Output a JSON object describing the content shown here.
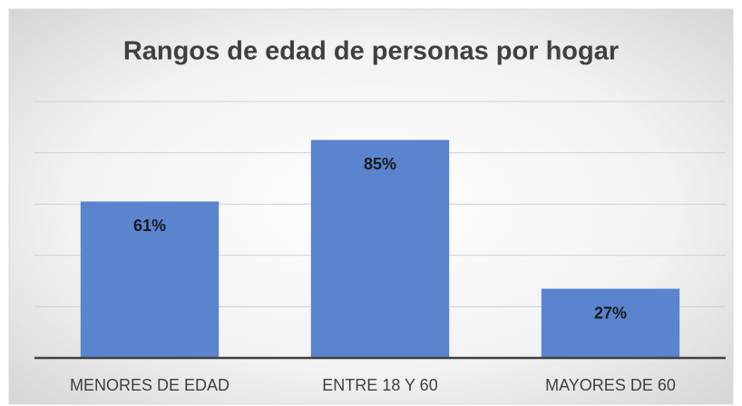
{
  "chart_data": {
    "type": "bar",
    "title": "Rangos de edad de personas por hogar",
    "categories": [
      "MENORES DE EDAD",
      "ENTRE 18 Y 60",
      "MAYORES DE 60"
    ],
    "values": [
      61,
      85,
      27
    ],
    "value_labels": [
      "61%",
      "85%",
      "27%"
    ],
    "color": "#5b84cf",
    "ylim": [
      0,
      100
    ],
    "yticks": [
      0,
      20,
      40,
      60,
      80,
      100
    ],
    "grid": true
  }
}
